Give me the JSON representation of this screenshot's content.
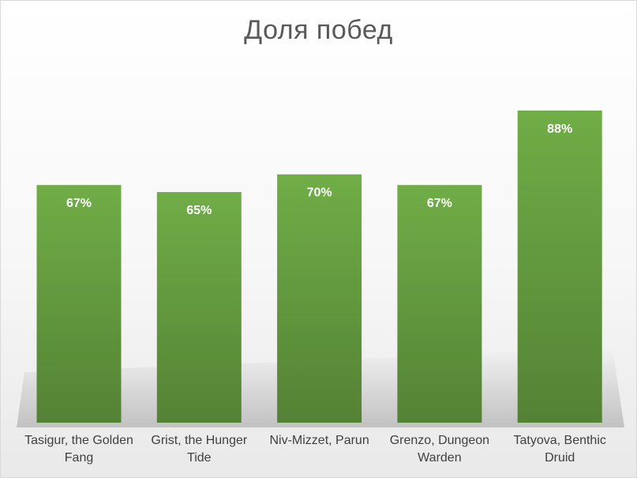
{
  "chart_data": {
    "type": "bar",
    "title": "Доля побед",
    "categories": [
      "Tasigur, the Golden Fang",
      "Grist, the Hunger Tide",
      "Niv-Mizzet, Parun",
      "Grenzo, Dungeon Warden",
      "Tatyova, Benthic Druid"
    ],
    "values": [
      67,
      65,
      70,
      67,
      88
    ],
    "value_labels": [
      "67%",
      "65%",
      "70%",
      "67%",
      "88%"
    ],
    "ylim": [
      0,
      100
    ],
    "grid": false,
    "legend": "none",
    "colors": {
      "bar_top": "#70ad47",
      "bar_bottom": "#548235",
      "label": "#ffffff"
    }
  }
}
